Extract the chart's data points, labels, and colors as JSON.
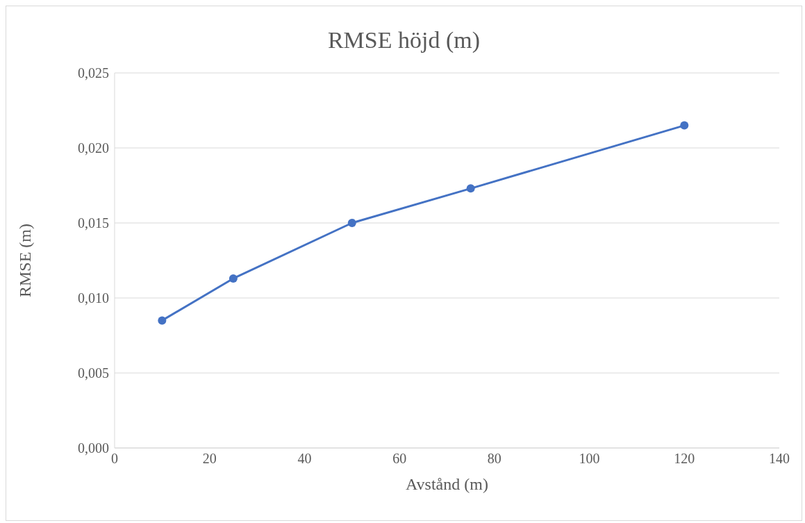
{
  "chart_data": {
    "type": "line",
    "title": "RMSE höjd (m)",
    "xlabel": "Avstånd (m)",
    "ylabel": "RMSE (m)",
    "x": [
      10,
      25,
      50,
      75,
      120
    ],
    "series": [
      {
        "color": "#4472c4",
        "values": [
          0.0085,
          0.0113,
          0.015,
          0.0173,
          0.0215
        ]
      }
    ],
    "xlim": [
      0,
      140
    ],
    "xticks": [
      0,
      20,
      40,
      60,
      80,
      100,
      120,
      140
    ],
    "ylim": [
      0,
      0.025
    ],
    "yticks": [
      {
        "value": 0,
        "label": "0,000"
      },
      {
        "value": 0.005,
        "label": "0,005"
      },
      {
        "value": 0.01,
        "label": "0,010"
      },
      {
        "value": 0.015,
        "label": "0,015"
      },
      {
        "value": 0.02,
        "label": "0,020"
      },
      {
        "value": 0.025,
        "label": "0,025"
      }
    ],
    "grid": "y",
    "marker": "circle",
    "line_style": "solid",
    "legend": false
  }
}
